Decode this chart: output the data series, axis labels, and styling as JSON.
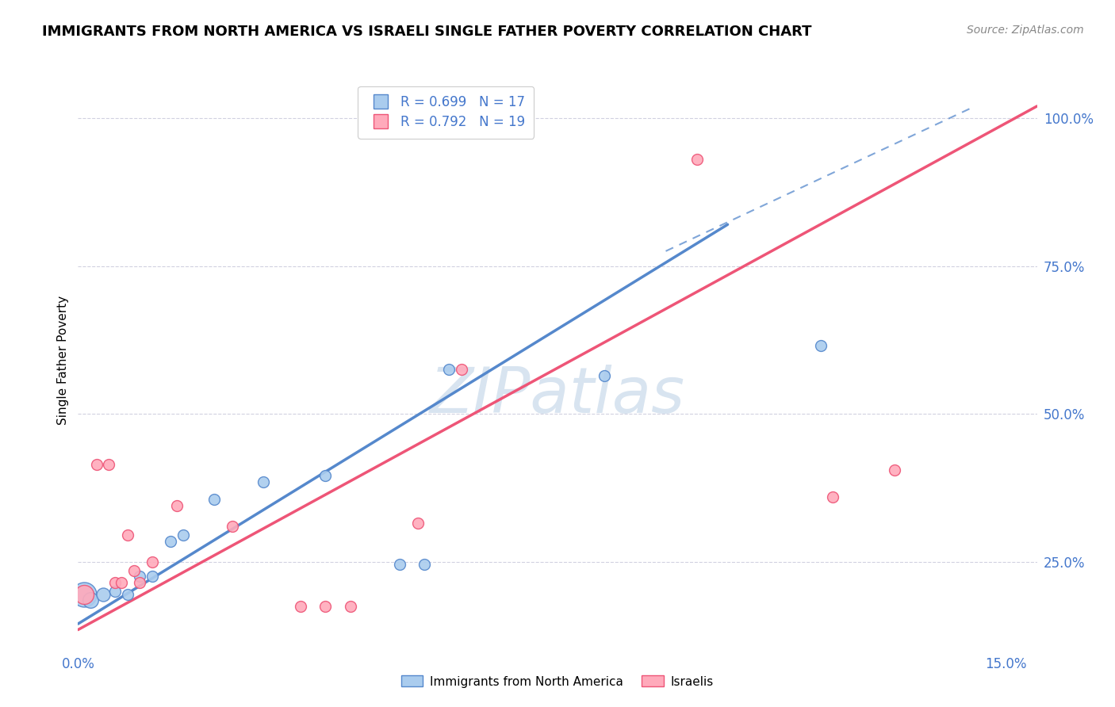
{
  "title": "IMMIGRANTS FROM NORTH AMERICA VS ISRAELI SINGLE FATHER POVERTY CORRELATION CHART",
  "source": "Source: ZipAtlas.com",
  "ylabel": "Single Father Poverty",
  "xlim": [
    0.0,
    0.155
  ],
  "ylim": [
    0.1,
    1.08
  ],
  "xticks": [
    0.0,
    0.03,
    0.06,
    0.09,
    0.12,
    0.15
  ],
  "xticklabels": [
    "0.0%",
    "",
    "",
    "",
    "",
    "15.0%"
  ],
  "yticks": [
    0.25,
    0.5,
    0.75,
    1.0
  ],
  "yticklabels": [
    "25.0%",
    "50.0%",
    "75.0%",
    "100.0%"
  ],
  "legend_R_blue": "R = 0.699",
  "legend_N_blue": "N = 17",
  "legend_R_pink": "R = 0.792",
  "legend_N_pink": "N = 19",
  "blue_scatter": [
    [
      0.001,
      0.195
    ],
    [
      0.002,
      0.185
    ],
    [
      0.004,
      0.195
    ],
    [
      0.006,
      0.2
    ],
    [
      0.008,
      0.195
    ],
    [
      0.01,
      0.225
    ],
    [
      0.012,
      0.225
    ],
    [
      0.015,
      0.285
    ],
    [
      0.017,
      0.295
    ],
    [
      0.022,
      0.355
    ],
    [
      0.03,
      0.385
    ],
    [
      0.04,
      0.395
    ],
    [
      0.052,
      0.245
    ],
    [
      0.056,
      0.245
    ],
    [
      0.06,
      0.575
    ],
    [
      0.085,
      0.565
    ],
    [
      0.12,
      0.615
    ]
  ],
  "blue_sizes": [
    500,
    200,
    150,
    100,
    100,
    100,
    100,
    100,
    100,
    100,
    100,
    100,
    100,
    100,
    100,
    100,
    100
  ],
  "pink_scatter": [
    [
      0.001,
      0.195
    ],
    [
      0.003,
      0.415
    ],
    [
      0.005,
      0.415
    ],
    [
      0.006,
      0.215
    ],
    [
      0.007,
      0.215
    ],
    [
      0.008,
      0.295
    ],
    [
      0.009,
      0.235
    ],
    [
      0.01,
      0.215
    ],
    [
      0.012,
      0.25
    ],
    [
      0.016,
      0.345
    ],
    [
      0.025,
      0.31
    ],
    [
      0.036,
      0.175
    ],
    [
      0.04,
      0.175
    ],
    [
      0.044,
      0.175
    ],
    [
      0.055,
      0.315
    ],
    [
      0.062,
      0.575
    ],
    [
      0.1,
      0.93
    ],
    [
      0.122,
      0.36
    ],
    [
      0.132,
      0.405
    ]
  ],
  "pink_sizes": [
    300,
    100,
    100,
    100,
    100,
    100,
    100,
    100,
    100,
    100,
    100,
    100,
    100,
    100,
    100,
    100,
    100,
    100,
    100
  ],
  "blue_line_x": [
    0.0,
    0.105
  ],
  "blue_line_y": [
    0.145,
    0.82
  ],
  "pink_line_x": [
    0.0,
    0.155
  ],
  "pink_line_y": [
    0.135,
    1.02
  ],
  "dashed_line_x": [
    0.095,
    0.145
  ],
  "dashed_line_y": [
    0.775,
    1.02
  ],
  "blue_color": "#5588cc",
  "pink_color": "#ee5577",
  "blue_scatter_color": "#aaccee",
  "pink_scatter_color": "#ffaabb",
  "watermark": "ZIPatlas",
  "watermark_color": "#d8e4f0",
  "grid_color": "#ccccdd",
  "title_fontsize": 13,
  "source_fontsize": 10
}
